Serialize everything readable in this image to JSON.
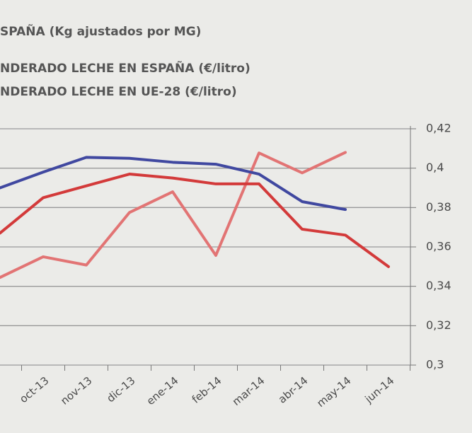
{
  "chart_data": {
    "type": "line",
    "categories": [
      null,
      "oct-13",
      "nov-13",
      "dic-13",
      "ene-14",
      "feb-14",
      "mar-14",
      "abr-14",
      "may-14",
      "jun-14"
    ],
    "series": [
      {
        "name": "SPAÑA (Kg ajustados por MG)",
        "color": "#e27474",
        "axis": "y2",
        "values": [
          0.3445,
          0.355,
          0.3508,
          0.3775,
          0.388,
          0.3557,
          0.4077,
          0.3976,
          0.408,
          null
        ]
      },
      {
        "name": "NDERADO LECHE EN ESPAÑA (€/litro)",
        "color": "#d33a3a",
        "axis": "y2",
        "values": [
          0.367,
          0.385,
          0.391,
          0.397,
          0.395,
          0.392,
          0.392,
          0.369,
          0.366,
          0.35
        ]
      },
      {
        "name": "NDERADO LECHE EN UE-28 (€/litro)",
        "color": "#4048a0",
        "axis": "y2",
        "values": [
          0.39,
          0.398,
          0.4055,
          0.405,
          0.403,
          0.402,
          0.397,
          0.383,
          0.379,
          null
        ]
      }
    ],
    "y2lim": [
      0.3,
      0.42
    ],
    "y2ticks": [
      {
        "value": 0.3,
        "label": "0,3"
      },
      {
        "value": 0.32,
        "label": "0,32"
      },
      {
        "value": 0.34,
        "label": "0,34"
      },
      {
        "value": 0.36,
        "label": "0,36"
      },
      {
        "value": 0.38,
        "label": "0,38"
      },
      {
        "value": 0.4,
        "label": "0,4"
      },
      {
        "value": 0.42,
        "label": "0,42"
      }
    ],
    "grid": true
  }
}
